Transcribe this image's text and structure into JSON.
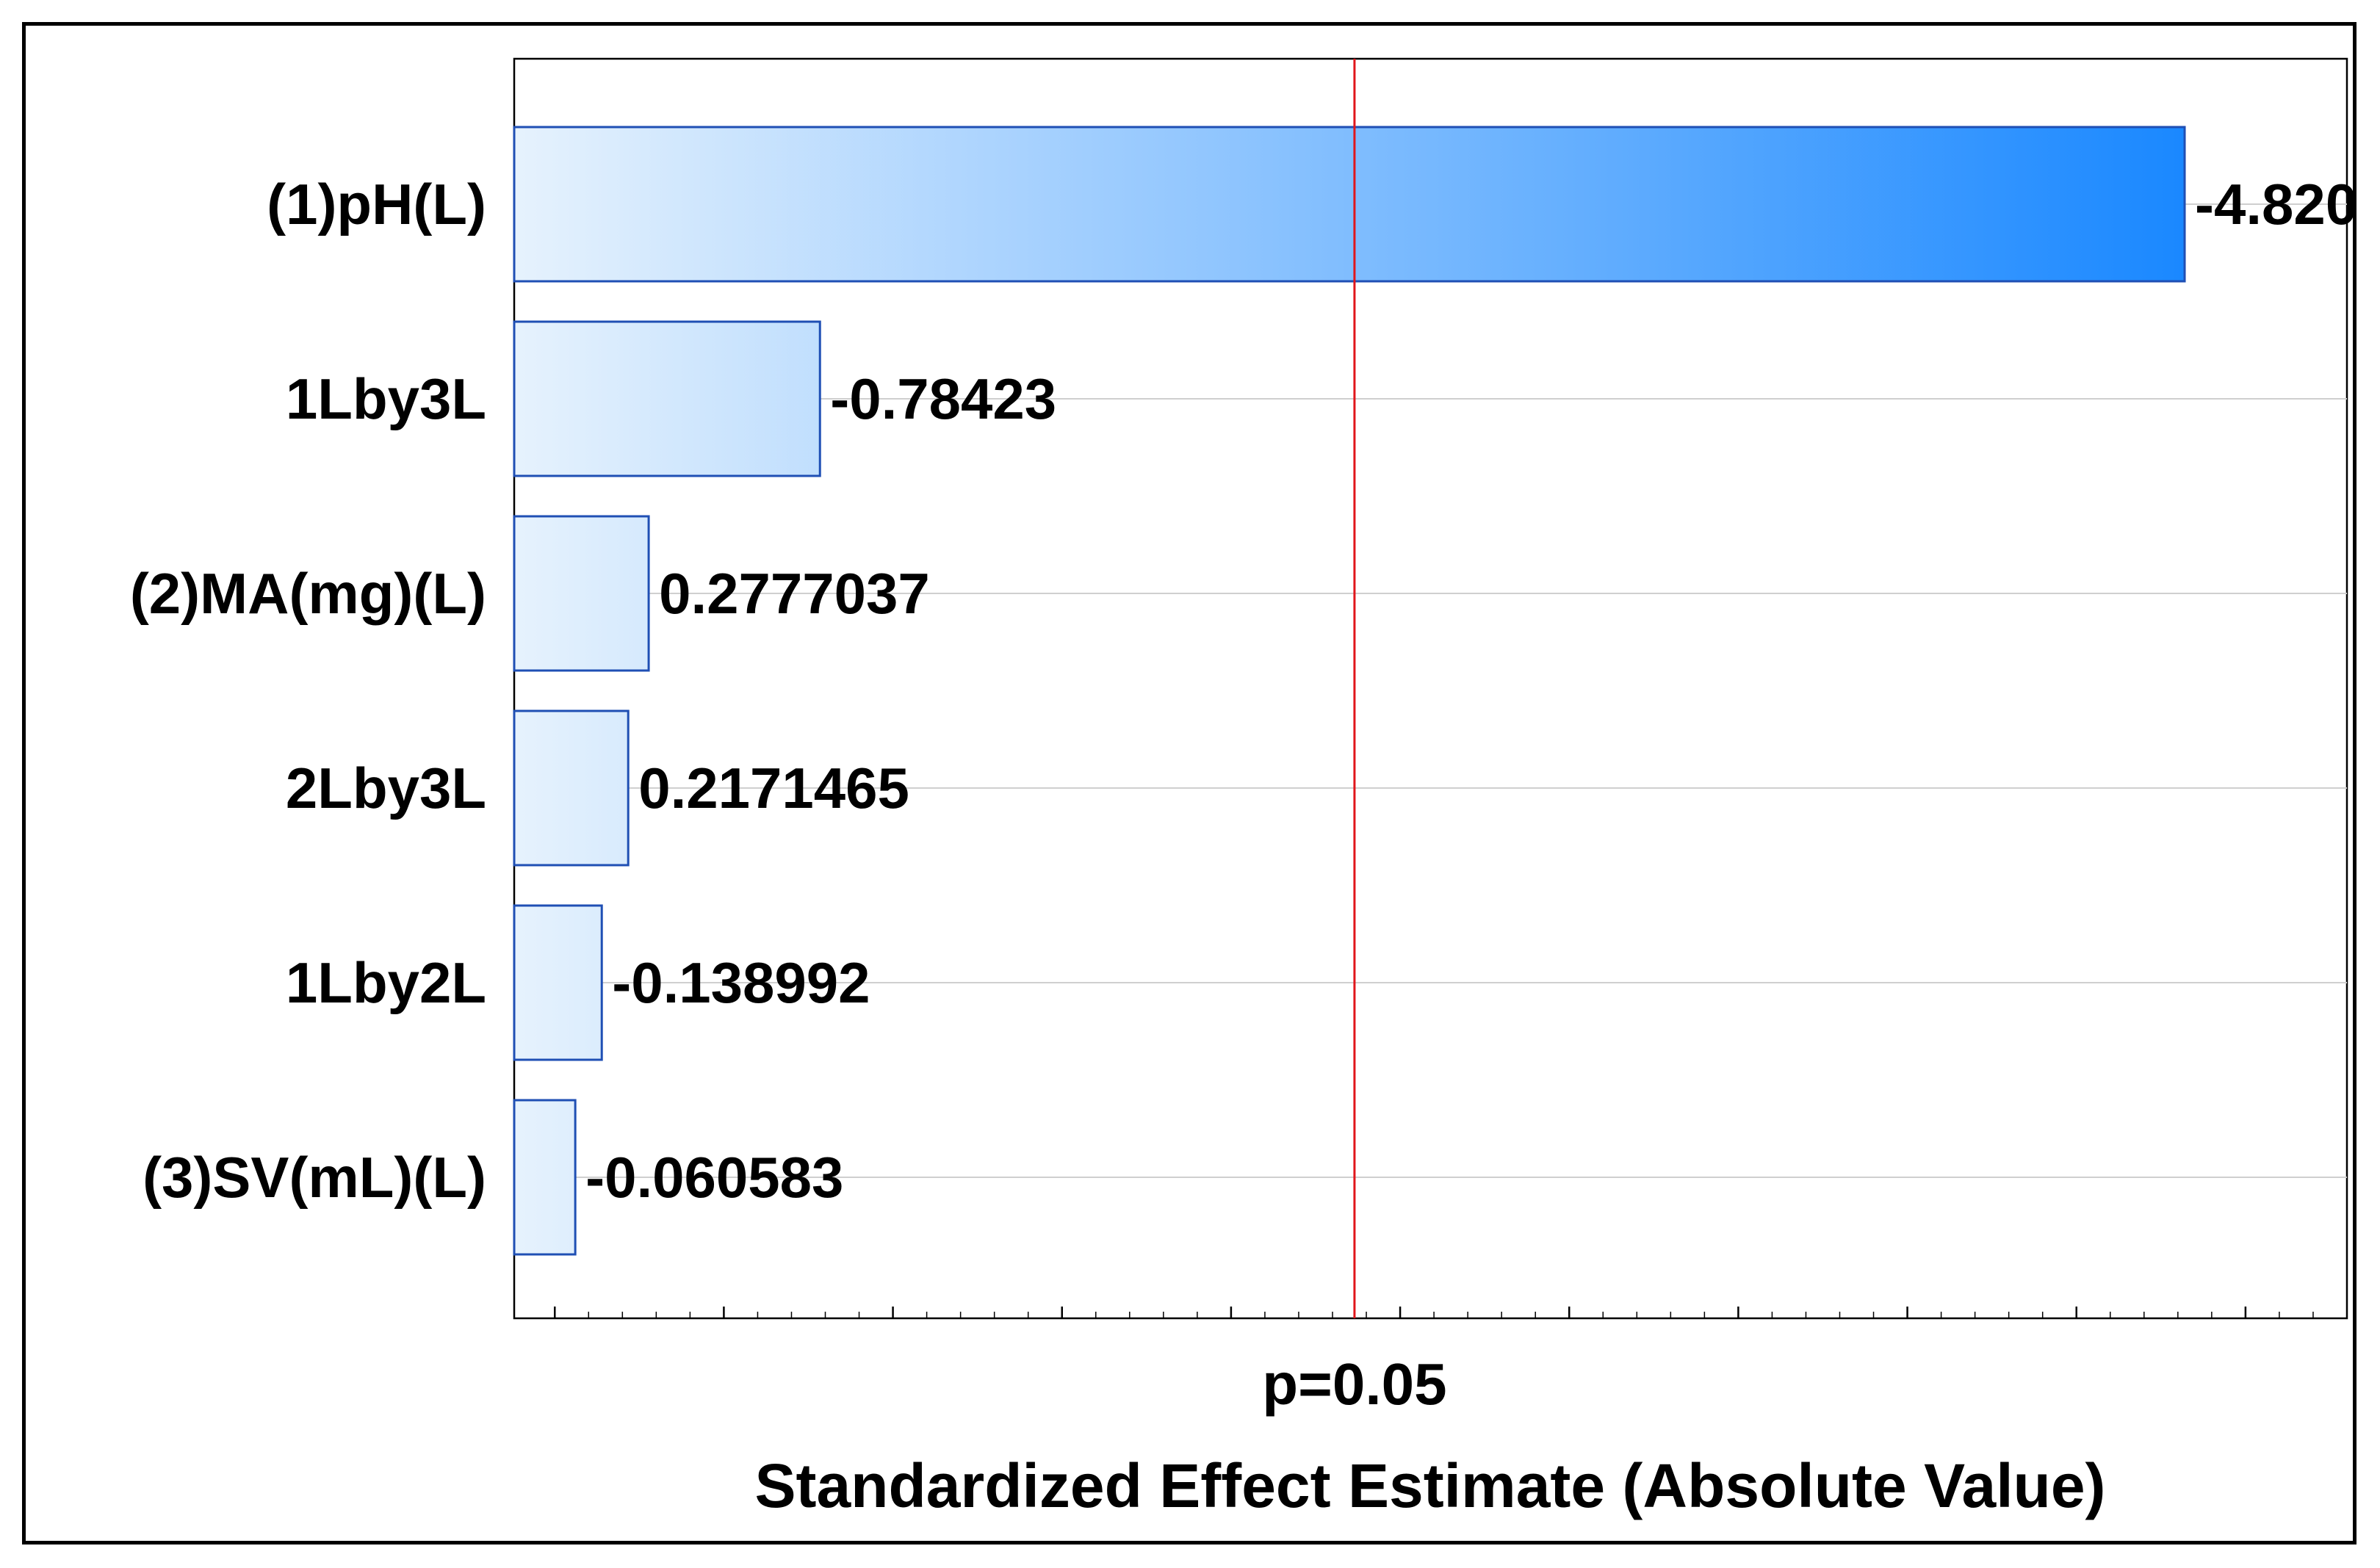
{
  "chart_data": {
    "type": "bar",
    "orientation": "horizontal",
    "categories": [
      "(1)pH(L)",
      "1Lby3L",
      "(2)MA(mg)(L)",
      "2Lby3L",
      "1Lby2L",
      "(3)SV(mL)(L)"
    ],
    "values": [
      -4.82,
      -0.78423,
      0.2777037,
      0.2171465,
      -0.138992,
      -0.060583
    ],
    "value_labels": [
      "-4.820",
      "-0.78423",
      "0.2777037",
      "0.2171465",
      "-0.138992",
      "-0.060583"
    ],
    "plotted_as": "absolute value",
    "xlabel": "Standardized Effect Estimate (Absolute Value)",
    "xlim": [
      -0.12,
      5.3
    ],
    "reference_line": {
      "value": 2.365,
      "label": "p=0.05",
      "color": "#e0161b"
    },
    "grid": true,
    "bar_gradient": [
      "#e6f2fd",
      "#1a88ff"
    ],
    "bar_border": "#1f4fb4"
  }
}
